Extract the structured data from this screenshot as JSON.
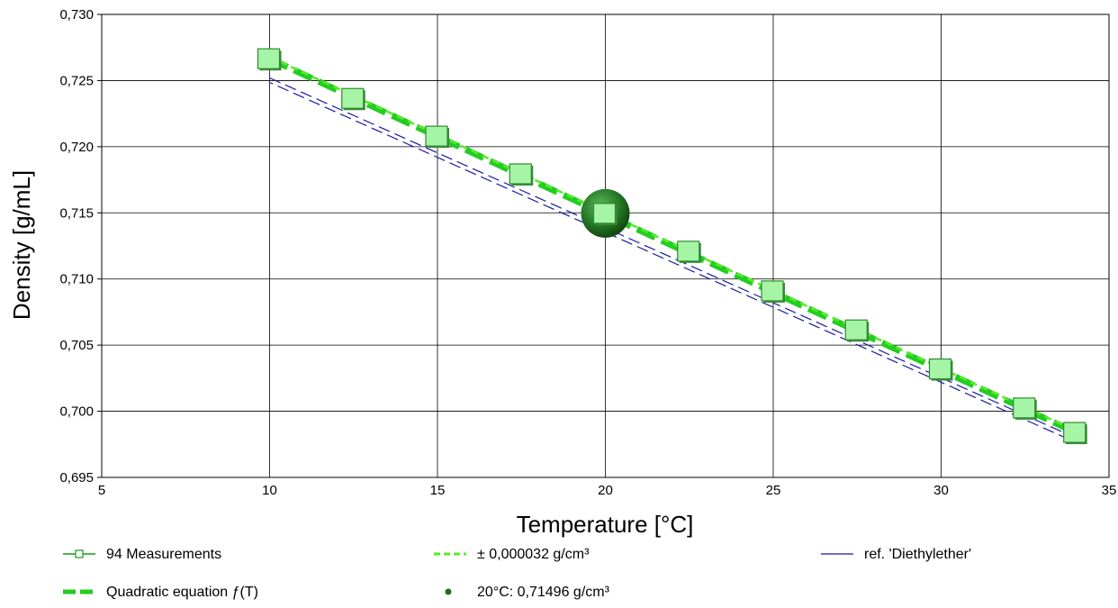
{
  "chart_data": {
    "type": "scatter",
    "xlabel": "Temperature [°C]",
    "ylabel": "Density [g/mL]",
    "xlim": [
      5,
      35
    ],
    "ylim": [
      0.695,
      0.73
    ],
    "grid": true,
    "legend_position": "bottom",
    "x_ticks": [
      "5",
      "10",
      "15",
      "20",
      "25",
      "30",
      "35"
    ],
    "y_ticks": [
      "0,695",
      "0,700",
      "0,705",
      "0,710",
      "0,715",
      "0,720",
      "0,725",
      "0,730"
    ],
    "series": [
      {
        "name": "94 Measurements",
        "kind": "markers",
        "color": "#a6f5a6",
        "x": [
          10,
          12.5,
          15,
          17.5,
          20,
          22.5,
          25,
          27.5,
          30,
          32.5,
          34
        ],
        "y": [
          0.72665,
          0.72365,
          0.7208,
          0.71795,
          0.71496,
          0.7121,
          0.7091,
          0.70615,
          0.7032,
          0.70025,
          0.6984
        ]
      },
      {
        "name": "Quadratic equation ƒ(T)",
        "kind": "dashed-line",
        "color": "#22cc22",
        "x": [
          10,
          34
        ],
        "y": [
          0.72665,
          0.6984
        ]
      },
      {
        "name": "± 0,000032 g/cm³",
        "kind": "dashed-line",
        "color": "#55ee22",
        "x": [
          10,
          34
        ],
        "y": [
          0.72665,
          0.6984
        ]
      },
      {
        "name": "ref. 'Diethylether'",
        "kind": "line",
        "color": "#1a1aa8",
        "x": [
          10,
          34
        ],
        "y": [
          0.7252,
          0.698
        ]
      },
      {
        "name": "20°C: 0,71496 g/cm³",
        "kind": "point",
        "color": "#1f6e1f",
        "x": [
          20
        ],
        "y": [
          0.71496
        ]
      }
    ]
  },
  "legend": [
    {
      "label": "94 Measurements",
      "style": "marker-line",
      "color": "#1a9a1a"
    },
    {
      "label": "± 0,000032 g/cm³",
      "style": "dashed-bright",
      "color": "#55ee22"
    },
    {
      "label": "ref. 'Diethylether'",
      "style": "thin-line",
      "color": "#1a1aa8"
    },
    {
      "label": "Quadratic equation ƒ(T)",
      "style": "dashed-thick",
      "color": "#22cc22"
    },
    {
      "label": "20°C: 0,71496 g/cm³",
      "style": "dot",
      "color": "#1f6e1f"
    }
  ]
}
